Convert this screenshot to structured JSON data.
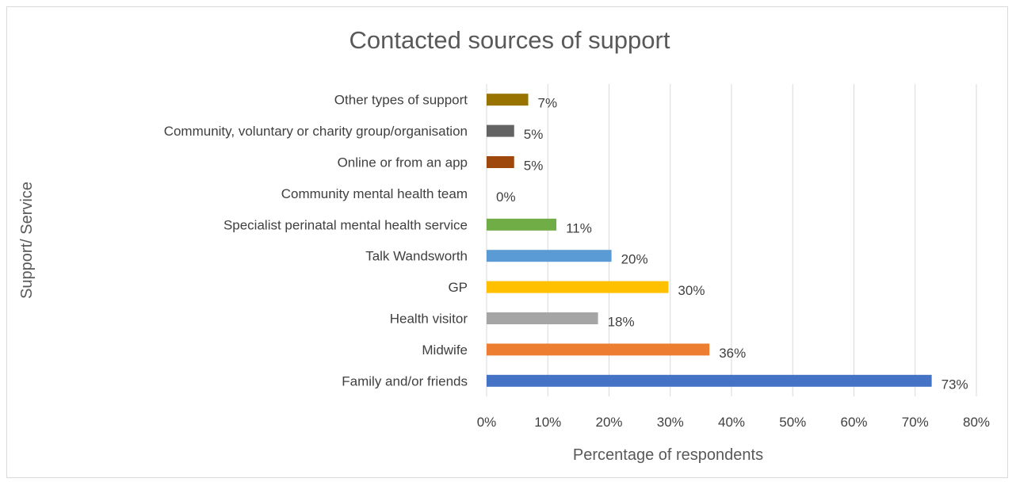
{
  "chart_data": {
    "type": "bar",
    "orientation": "horizontal",
    "title": "Contacted sources of support",
    "xlabel": "Percentage of respondents",
    "ylabel": "Support/ Service",
    "xlim": [
      0,
      80
    ],
    "x_ticks": [
      "0%",
      "10%",
      "20%",
      "30%",
      "40%",
      "50%",
      "60%",
      "70%",
      "80%"
    ],
    "grid": true,
    "legend": "none",
    "categories": [
      "Family and/or friends",
      "Midwife",
      "Health visitor",
      "GP",
      "Talk Wandsworth",
      "Specialist perinatal mental health service",
      "Community mental health team",
      "Online or from an app",
      "Community, voluntary or charity group/organisation",
      "Other types of support"
    ],
    "values": [
      72.7,
      36.4,
      18.2,
      29.7,
      20.4,
      11.4,
      0,
      4.5,
      4.5,
      6.8
    ],
    "data_labels": [
      "73%",
      "36%",
      "18%",
      "30%",
      "20%",
      "11%",
      "0%",
      "5%",
      "5%",
      "7%"
    ],
    "colors": [
      "#4472c4",
      "#ed7d31",
      "#a5a5a5",
      "#ffc000",
      "#5b9bd5",
      "#70ad47",
      "#264478",
      "#9e480e",
      "#636363",
      "#997300"
    ]
  }
}
